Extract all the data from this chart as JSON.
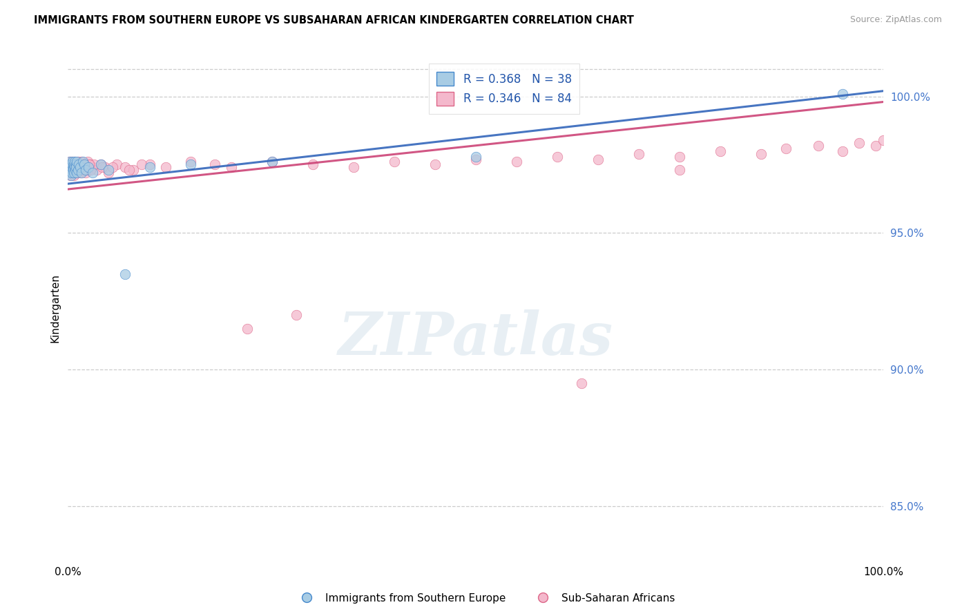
{
  "title": "IMMIGRANTS FROM SOUTHERN EUROPE VS SUBSAHARAN AFRICAN KINDERGARTEN CORRELATION CHART",
  "source": "Source: ZipAtlas.com",
  "ylabel": "Kindergarten",
  "x_range": [
    0.0,
    100.0
  ],
  "y_range": [
    83.0,
    101.5
  ],
  "blue_label": "Immigrants from Southern Europe",
  "pink_label": "Sub-Saharan Africans",
  "blue_R": 0.368,
  "blue_N": 38,
  "pink_R": 0.346,
  "pink_N": 84,
  "blue_color": "#a8cce4",
  "pink_color": "#f4b8cc",
  "blue_edge_color": "#4488cc",
  "pink_edge_color": "#dd6688",
  "blue_line_color": "#3366bb",
  "pink_line_color": "#cc4477",
  "y_ticks": [
    85.0,
    90.0,
    95.0,
    100.0
  ],
  "top_grid_y": 101.0,
  "watermark": "ZIPatlas",
  "blue_x": [
    0.1,
    0.15,
    0.2,
    0.25,
    0.3,
    0.35,
    0.4,
    0.45,
    0.5,
    0.55,
    0.6,
    0.65,
    0.7,
    0.75,
    0.8,
    0.85,
    0.9,
    0.95,
    1.0,
    1.05,
    1.1,
    1.2,
    1.3,
    1.5,
    1.7,
    1.8,
    2.0,
    2.2,
    2.5,
    3.0,
    4.0,
    5.0,
    7.0,
    10.0,
    15.0,
    25.0,
    50.0,
    95.0
  ],
  "blue_y": [
    97.2,
    97.5,
    97.3,
    97.6,
    97.4,
    97.1,
    97.5,
    97.3,
    97.2,
    97.6,
    97.4,
    97.3,
    97.5,
    97.2,
    97.4,
    97.6,
    97.3,
    97.5,
    97.4,
    97.2,
    97.6,
    97.3,
    97.5,
    97.4,
    97.2,
    97.6,
    97.5,
    97.3,
    97.4,
    97.2,
    97.5,
    97.3,
    93.5,
    97.4,
    97.5,
    97.6,
    97.8,
    100.1
  ],
  "pink_x": [
    0.05,
    0.1,
    0.15,
    0.2,
    0.25,
    0.3,
    0.35,
    0.4,
    0.45,
    0.5,
    0.55,
    0.6,
    0.65,
    0.7,
    0.75,
    0.8,
    0.85,
    0.9,
    0.95,
    1.0,
    1.05,
    1.1,
    1.2,
    1.3,
    1.4,
    1.5,
    1.6,
    1.7,
    1.8,
    1.9,
    2.0,
    2.2,
    2.4,
    2.5,
    2.7,
    3.0,
    3.5,
    4.0,
    4.5,
    5.0,
    6.0,
    7.0,
    8.0,
    10.0,
    12.0,
    15.0,
    18.0,
    20.0,
    25.0,
    30.0,
    35.0,
    40.0,
    45.0,
    50.0,
    55.0,
    60.0,
    65.0,
    70.0,
    75.0,
    80.0,
    85.0,
    88.0,
    92.0,
    95.0,
    97.0,
    99.0,
    100.0,
    2.8,
    3.2,
    5.5,
    7.5,
    9.0,
    0.6,
    0.8,
    1.15,
    1.35,
    1.55,
    2.1,
    2.6,
    4.2,
    22.0,
    28.0,
    63.0,
    75.0
  ],
  "pink_y": [
    97.3,
    97.5,
    97.2,
    97.6,
    97.4,
    97.1,
    97.5,
    97.3,
    97.6,
    97.2,
    97.4,
    97.5,
    97.3,
    97.1,
    97.5,
    97.4,
    97.6,
    97.2,
    97.3,
    97.5,
    97.4,
    97.2,
    97.6,
    97.3,
    97.5,
    97.4,
    97.2,
    97.6,
    97.3,
    97.5,
    97.4,
    97.2,
    97.6,
    97.3,
    97.5,
    97.4,
    97.3,
    97.5,
    97.4,
    97.2,
    97.5,
    97.4,
    97.3,
    97.5,
    97.4,
    97.6,
    97.5,
    97.4,
    97.6,
    97.5,
    97.4,
    97.6,
    97.5,
    97.7,
    97.6,
    97.8,
    97.7,
    97.9,
    97.8,
    98.0,
    97.9,
    98.1,
    98.2,
    98.0,
    98.3,
    98.2,
    98.4,
    97.3,
    97.5,
    97.4,
    97.3,
    97.5,
    97.2,
    97.4,
    97.5,
    97.3,
    97.4,
    97.3,
    97.5,
    97.4,
    91.5,
    92.0,
    89.5,
    97.3
  ],
  "blue_trendline_x": [
    0,
    100
  ],
  "blue_trendline_y": [
    96.8,
    100.2
  ],
  "pink_trendline_x": [
    0,
    100
  ],
  "pink_trendline_y": [
    96.6,
    99.8
  ]
}
